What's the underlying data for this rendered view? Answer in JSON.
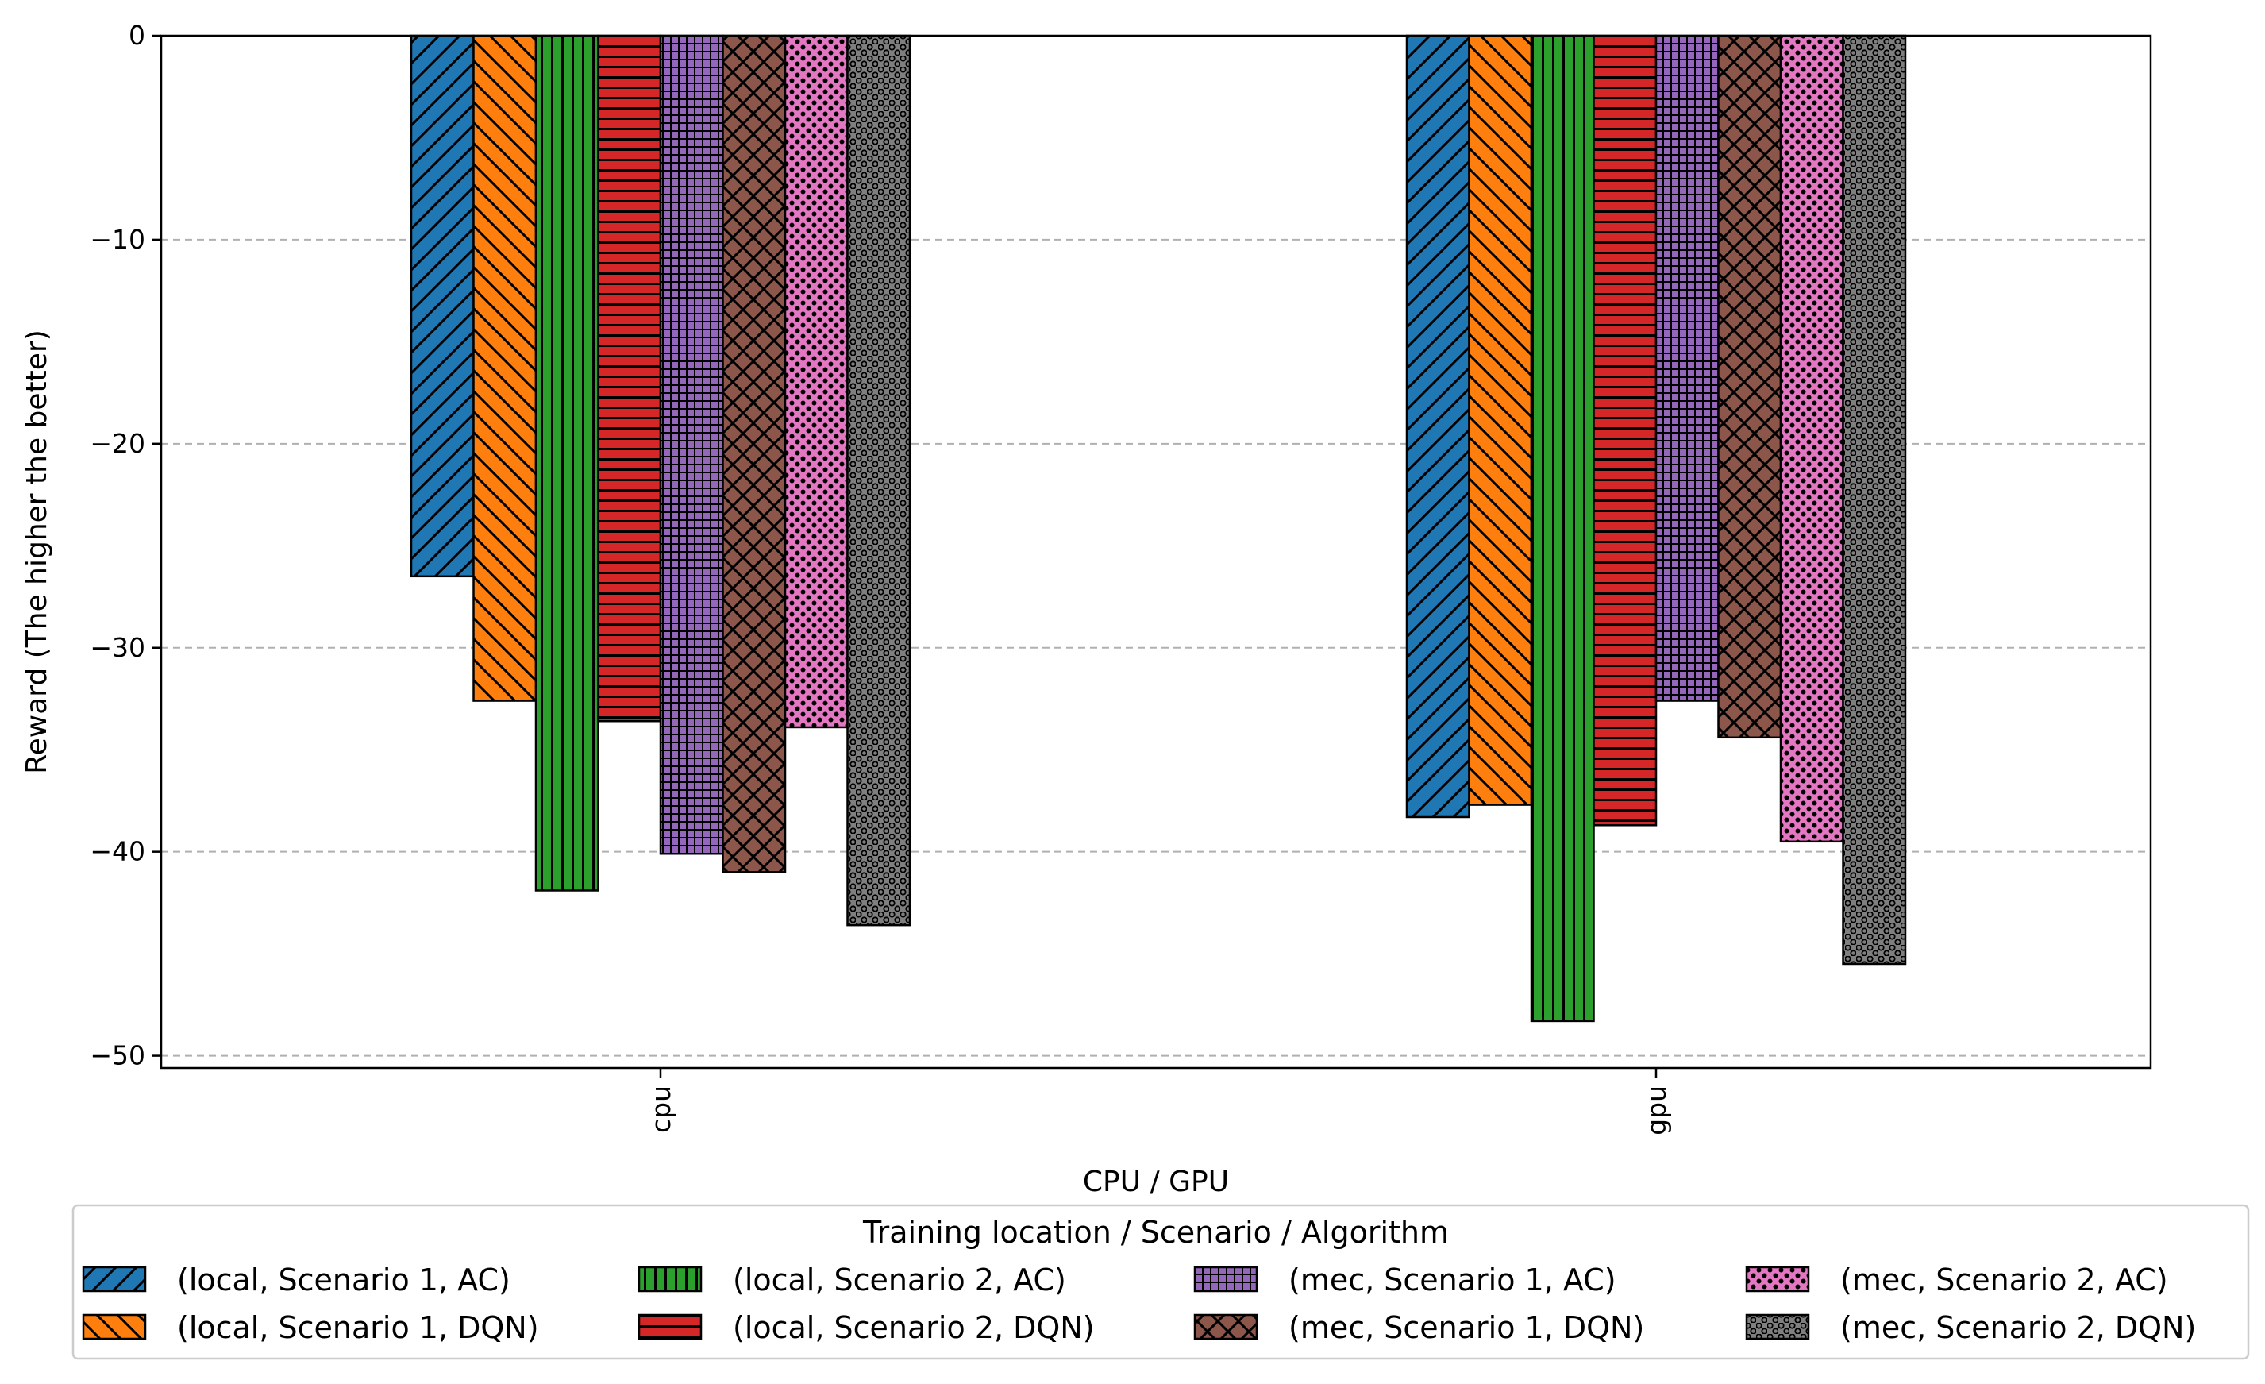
{
  "chart_data": {
    "type": "bar",
    "categories": [
      "cpu",
      "gpu"
    ],
    "xlabel": "CPU / GPU",
    "ylabel": "Reward (The higher the better)",
    "ylim": [
      -50.6,
      0
    ],
    "yticks": [
      0,
      -10,
      -20,
      -30,
      -40,
      -50
    ],
    "ytick_labels": [
      "0",
      "−10",
      "−20",
      "−30",
      "−40",
      "−50"
    ],
    "grid": "y-dashed",
    "legend_title": "Training location / Scenario / Algorithm",
    "legend_position": "bottom",
    "series": [
      {
        "name": "(local, Scenario 1, AC)",
        "color": "#1f77b4",
        "hatch": "diag-up",
        "values": [
          -26.5,
          -38.3
        ]
      },
      {
        "name": "(local, Scenario 1, DQN)",
        "color": "#ff7f0e",
        "hatch": "diag-down",
        "values": [
          -32.6,
          -37.7
        ]
      },
      {
        "name": "(local, Scenario 2, AC)",
        "color": "#2ca02c",
        "hatch": "vertical",
        "values": [
          -41.9,
          -48.3
        ]
      },
      {
        "name": "(local, Scenario 2, DQN)",
        "color": "#d62728",
        "hatch": "horizontal",
        "values": [
          -33.6,
          -38.7
        ]
      },
      {
        "name": "(mec, Scenario 1, AC)",
        "color": "#9467bd",
        "hatch": "grid",
        "values": [
          -40.1,
          -32.6
        ]
      },
      {
        "name": "(mec, Scenario 1, DQN)",
        "color": "#8c564b",
        "hatch": "cross",
        "values": [
          -41.0,
          -34.4
        ]
      },
      {
        "name": "(mec, Scenario 2, AC)",
        "color": "#e377c2",
        "hatch": "dots",
        "values": [
          -33.9,
          -39.5
        ]
      },
      {
        "name": "(mec, Scenario 2, DQN)",
        "color": "#7f7f7f",
        "hatch": "rings",
        "values": [
          -43.6,
          -45.5
        ]
      }
    ]
  }
}
